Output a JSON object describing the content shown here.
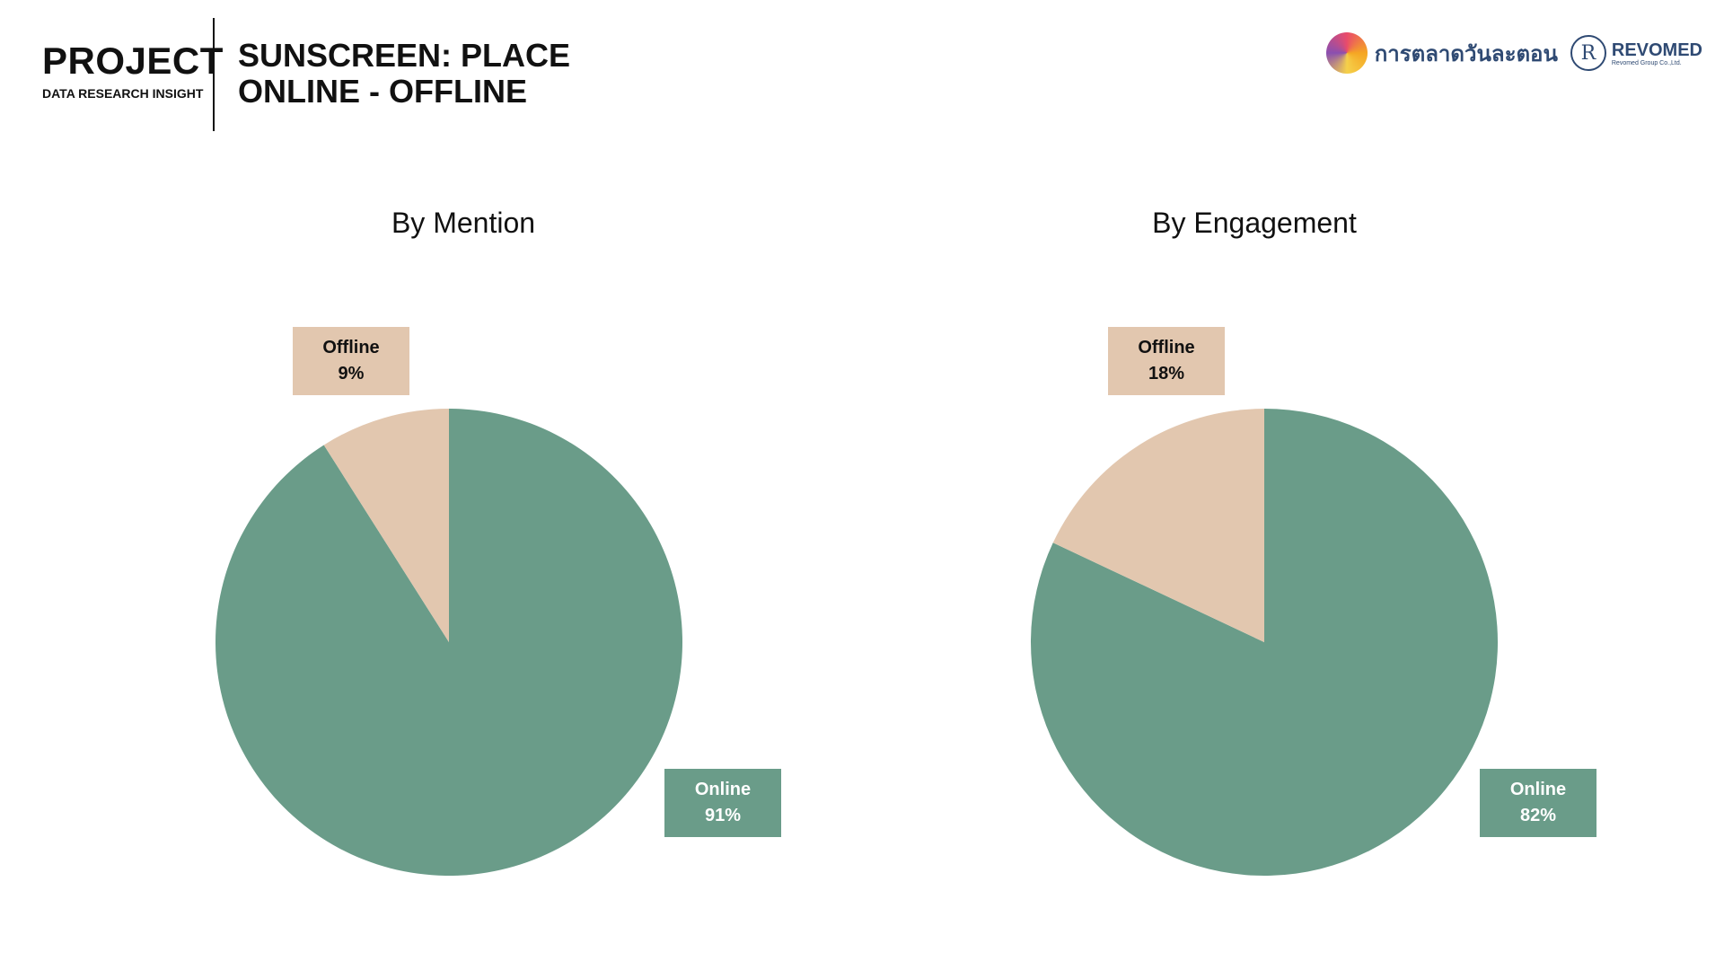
{
  "header": {
    "project": "PROJECT",
    "project_sub": "DATA RESEARCH INSIGHT",
    "title_line1": "SUNSCREEN: PLACE",
    "title_line2": "ONLINE - OFFLINE"
  },
  "logos": {
    "partner_text": "การตลาดวันละตอน",
    "revomed_mark": "R",
    "revomed_name": "REVOMED",
    "revomed_sub": "Revomed Group Co.,Ltd."
  },
  "colors": {
    "online": "#6a9c89",
    "offline": "#e2c7af",
    "online_label_text": "#ffffff",
    "offline_label_text": "#111111"
  },
  "chart_data": [
    {
      "type": "pie",
      "title": "By Mention",
      "categories": [
        "Online",
        "Offline"
      ],
      "values": [
        91,
        9
      ],
      "labels": [
        "91%",
        "9%"
      ]
    },
    {
      "type": "pie",
      "title": "By Engagement",
      "categories": [
        "Online",
        "Offline"
      ],
      "values": [
        82,
        18
      ],
      "labels": [
        "82%",
        "18%"
      ]
    }
  ]
}
